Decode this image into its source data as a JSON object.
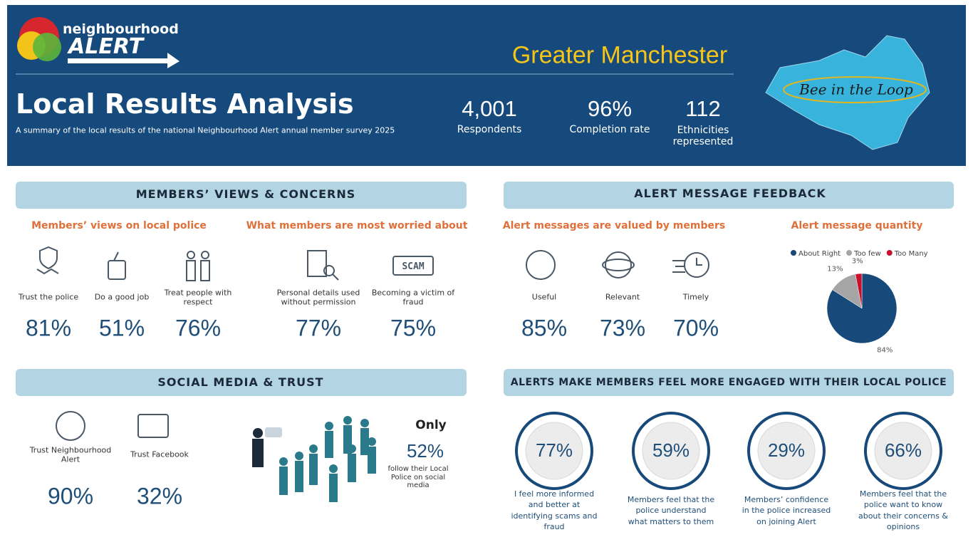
{
  "header": {
    "logo": {
      "line1": "neighbourhood",
      "line2": "ALERT"
    },
    "region": "Greater Manchester",
    "title": "Local Results Analysis",
    "subtitle": "A summary of the local results of the national Neighbourhood Alert annual member survey 2025",
    "stats": [
      {
        "value": "4,001",
        "label": "Respondents"
      },
      {
        "value": "96%",
        "label": "Completion rate"
      },
      {
        "value": "112",
        "label": "Ethnicities represented"
      }
    ],
    "badge": "Bee in the Loop"
  },
  "views": {
    "heading": "MEMBERS’ VIEWS & CONCERNS",
    "police": {
      "title": "Members’ views on local police",
      "items": [
        {
          "label": "Trust the police",
          "value": "81%"
        },
        {
          "label": "Do a good job",
          "value": "51%"
        },
        {
          "label": "Treat people with respect",
          "value": "76%"
        }
      ]
    },
    "worries": {
      "title": "What members are most worried about",
      "items": [
        {
          "label": "Personal details used without permission",
          "value": "77%"
        },
        {
          "label": "Becoming a victim of fraud",
          "value": "75%"
        }
      ]
    }
  },
  "feedback": {
    "heading": "ALERT MESSAGE FEEDBACK",
    "valued": {
      "title": "Alert messages are valued by members",
      "items": [
        {
          "label": "Useful",
          "value": "85%"
        },
        {
          "label": "Relevant",
          "value": "73%"
        },
        {
          "label": "Timely",
          "value": "70%"
        }
      ]
    },
    "quantity": {
      "title": "Alert message quantity",
      "chart": {
        "type": "pie",
        "categories": [
          "About Right",
          "Too few",
          "Too Many"
        ],
        "values": [
          84,
          13,
          3
        ],
        "value_labels": [
          "84%",
          "13%",
          "3%"
        ],
        "colors": [
          "#17497a",
          "#a5a5a5",
          "#c8102e"
        ],
        "legend": "top"
      }
    }
  },
  "social": {
    "heading": "SOCIAL MEDIA & TRUST",
    "items": [
      {
        "label": "Trust Neighbourhood Alert",
        "value": "90%"
      },
      {
        "label": "Trust Facebook",
        "value": "32%"
      }
    ],
    "follow": {
      "lead": "Only",
      "value": "52%",
      "label": "follow their Local Police on social media"
    }
  },
  "engaged": {
    "heading": "ALERTS MAKE MEMBERS FEEL MORE ENGAGED WITH THEIR LOCAL POLICE",
    "items": [
      {
        "value": "77%",
        "label": "I feel more informed and better at identifying scams and fraud"
      },
      {
        "value": "59%",
        "label": "Members feel that the police understand what matters to them"
      },
      {
        "value": "29%",
        "label": "Members’ confidence in the police increased on joining Alert"
      },
      {
        "value": "66%",
        "label": "Members feel that the police want to know about their concerns & opinions"
      }
    ]
  }
}
